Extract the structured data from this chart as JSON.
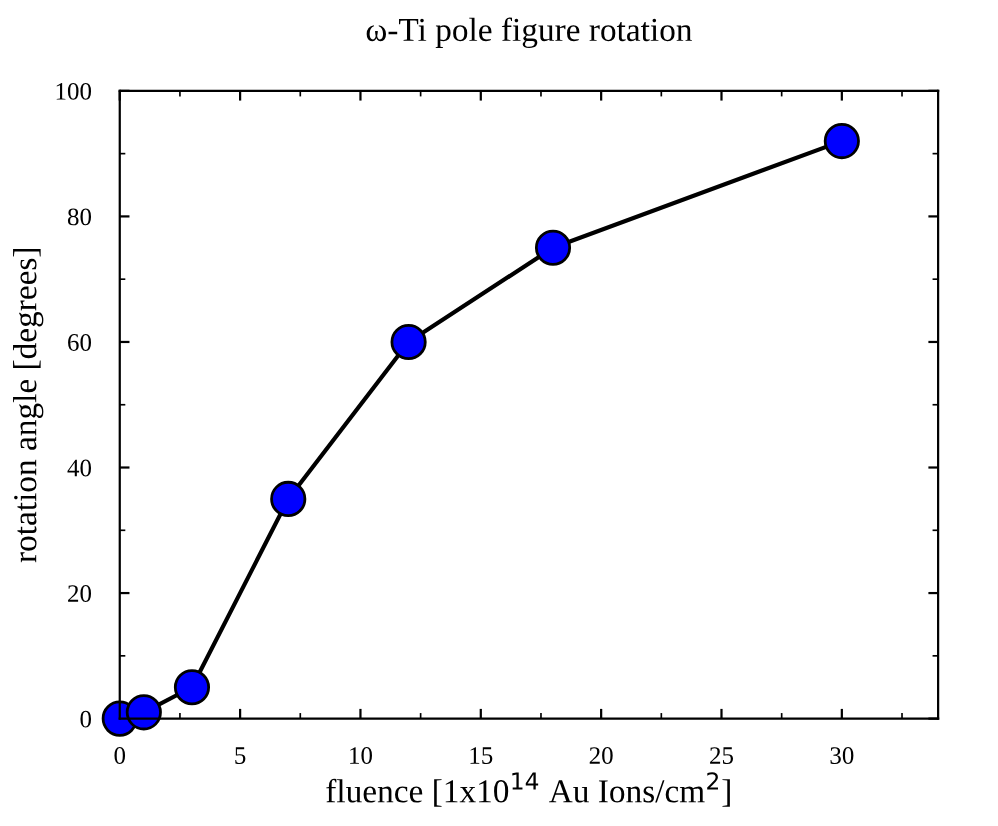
{
  "chart_data": {
    "type": "line",
    "title": "ω-Ti pole figure rotation",
    "xlabel": "fluence [1x10$^{14}$ Au Ions/cm$^{2}$]",
    "ylabel": "rotation angle [degrees]",
    "x": [
      0,
      1,
      3,
      7,
      12,
      18,
      30
    ],
    "series": [
      {
        "color": "#0000ff",
        "values": [
          0,
          1,
          5,
          35,
          60,
          75,
          92
        ]
      }
    ],
    "xlim": [
      0,
      34
    ],
    "ylim": [
      0,
      100
    ],
    "xticks": [
      0,
      5,
      10,
      15,
      20,
      25,
      30
    ],
    "yticks": [
      0,
      20,
      40,
      60,
      80,
      100
    ],
    "marker": "circle",
    "line_style": "solid",
    "grid": false,
    "legend": false
  }
}
